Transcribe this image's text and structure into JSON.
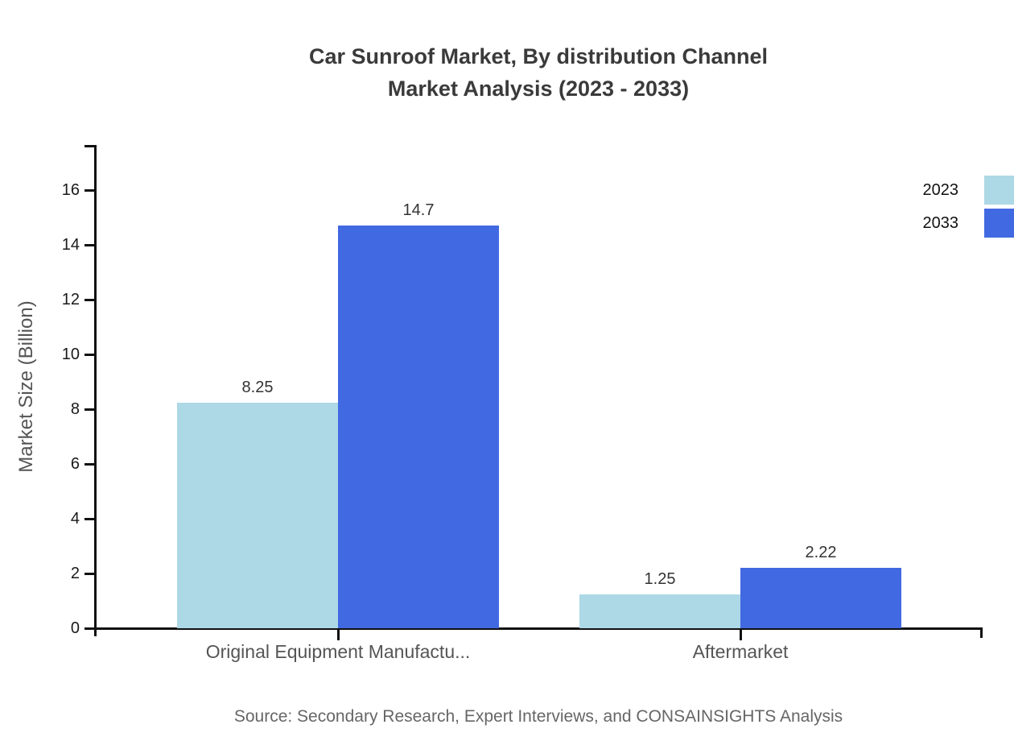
{
  "title": {
    "line1": "Car Sunroof Market, By distribution Channel",
    "line2": "Market Analysis (2023 - 2033)"
  },
  "source": "Source: Secondary Research, Expert Interviews, and CONSAINSIGHTS Analysis",
  "chart_data": {
    "type": "bar",
    "categories": [
      "Original Equipment Manufactu...",
      "Aftermarket"
    ],
    "series": [
      {
        "name": "2023",
        "color": "#ADD8E6",
        "values": [
          8.25,
          1.25
        ]
      },
      {
        "name": "2033",
        "color": "#4169E1",
        "values": [
          14.7,
          2.22
        ]
      }
    ],
    "title": "Car Sunroof Market, By distribution Channel Market Analysis (2023 - 2033)",
    "xlabel": "",
    "ylabel": "Market Size (Billion)",
    "ylim": [
      0,
      16
    ],
    "ytick_step": 2,
    "grid": false,
    "legend_position": "top-right",
    "value_labels": true
  }
}
